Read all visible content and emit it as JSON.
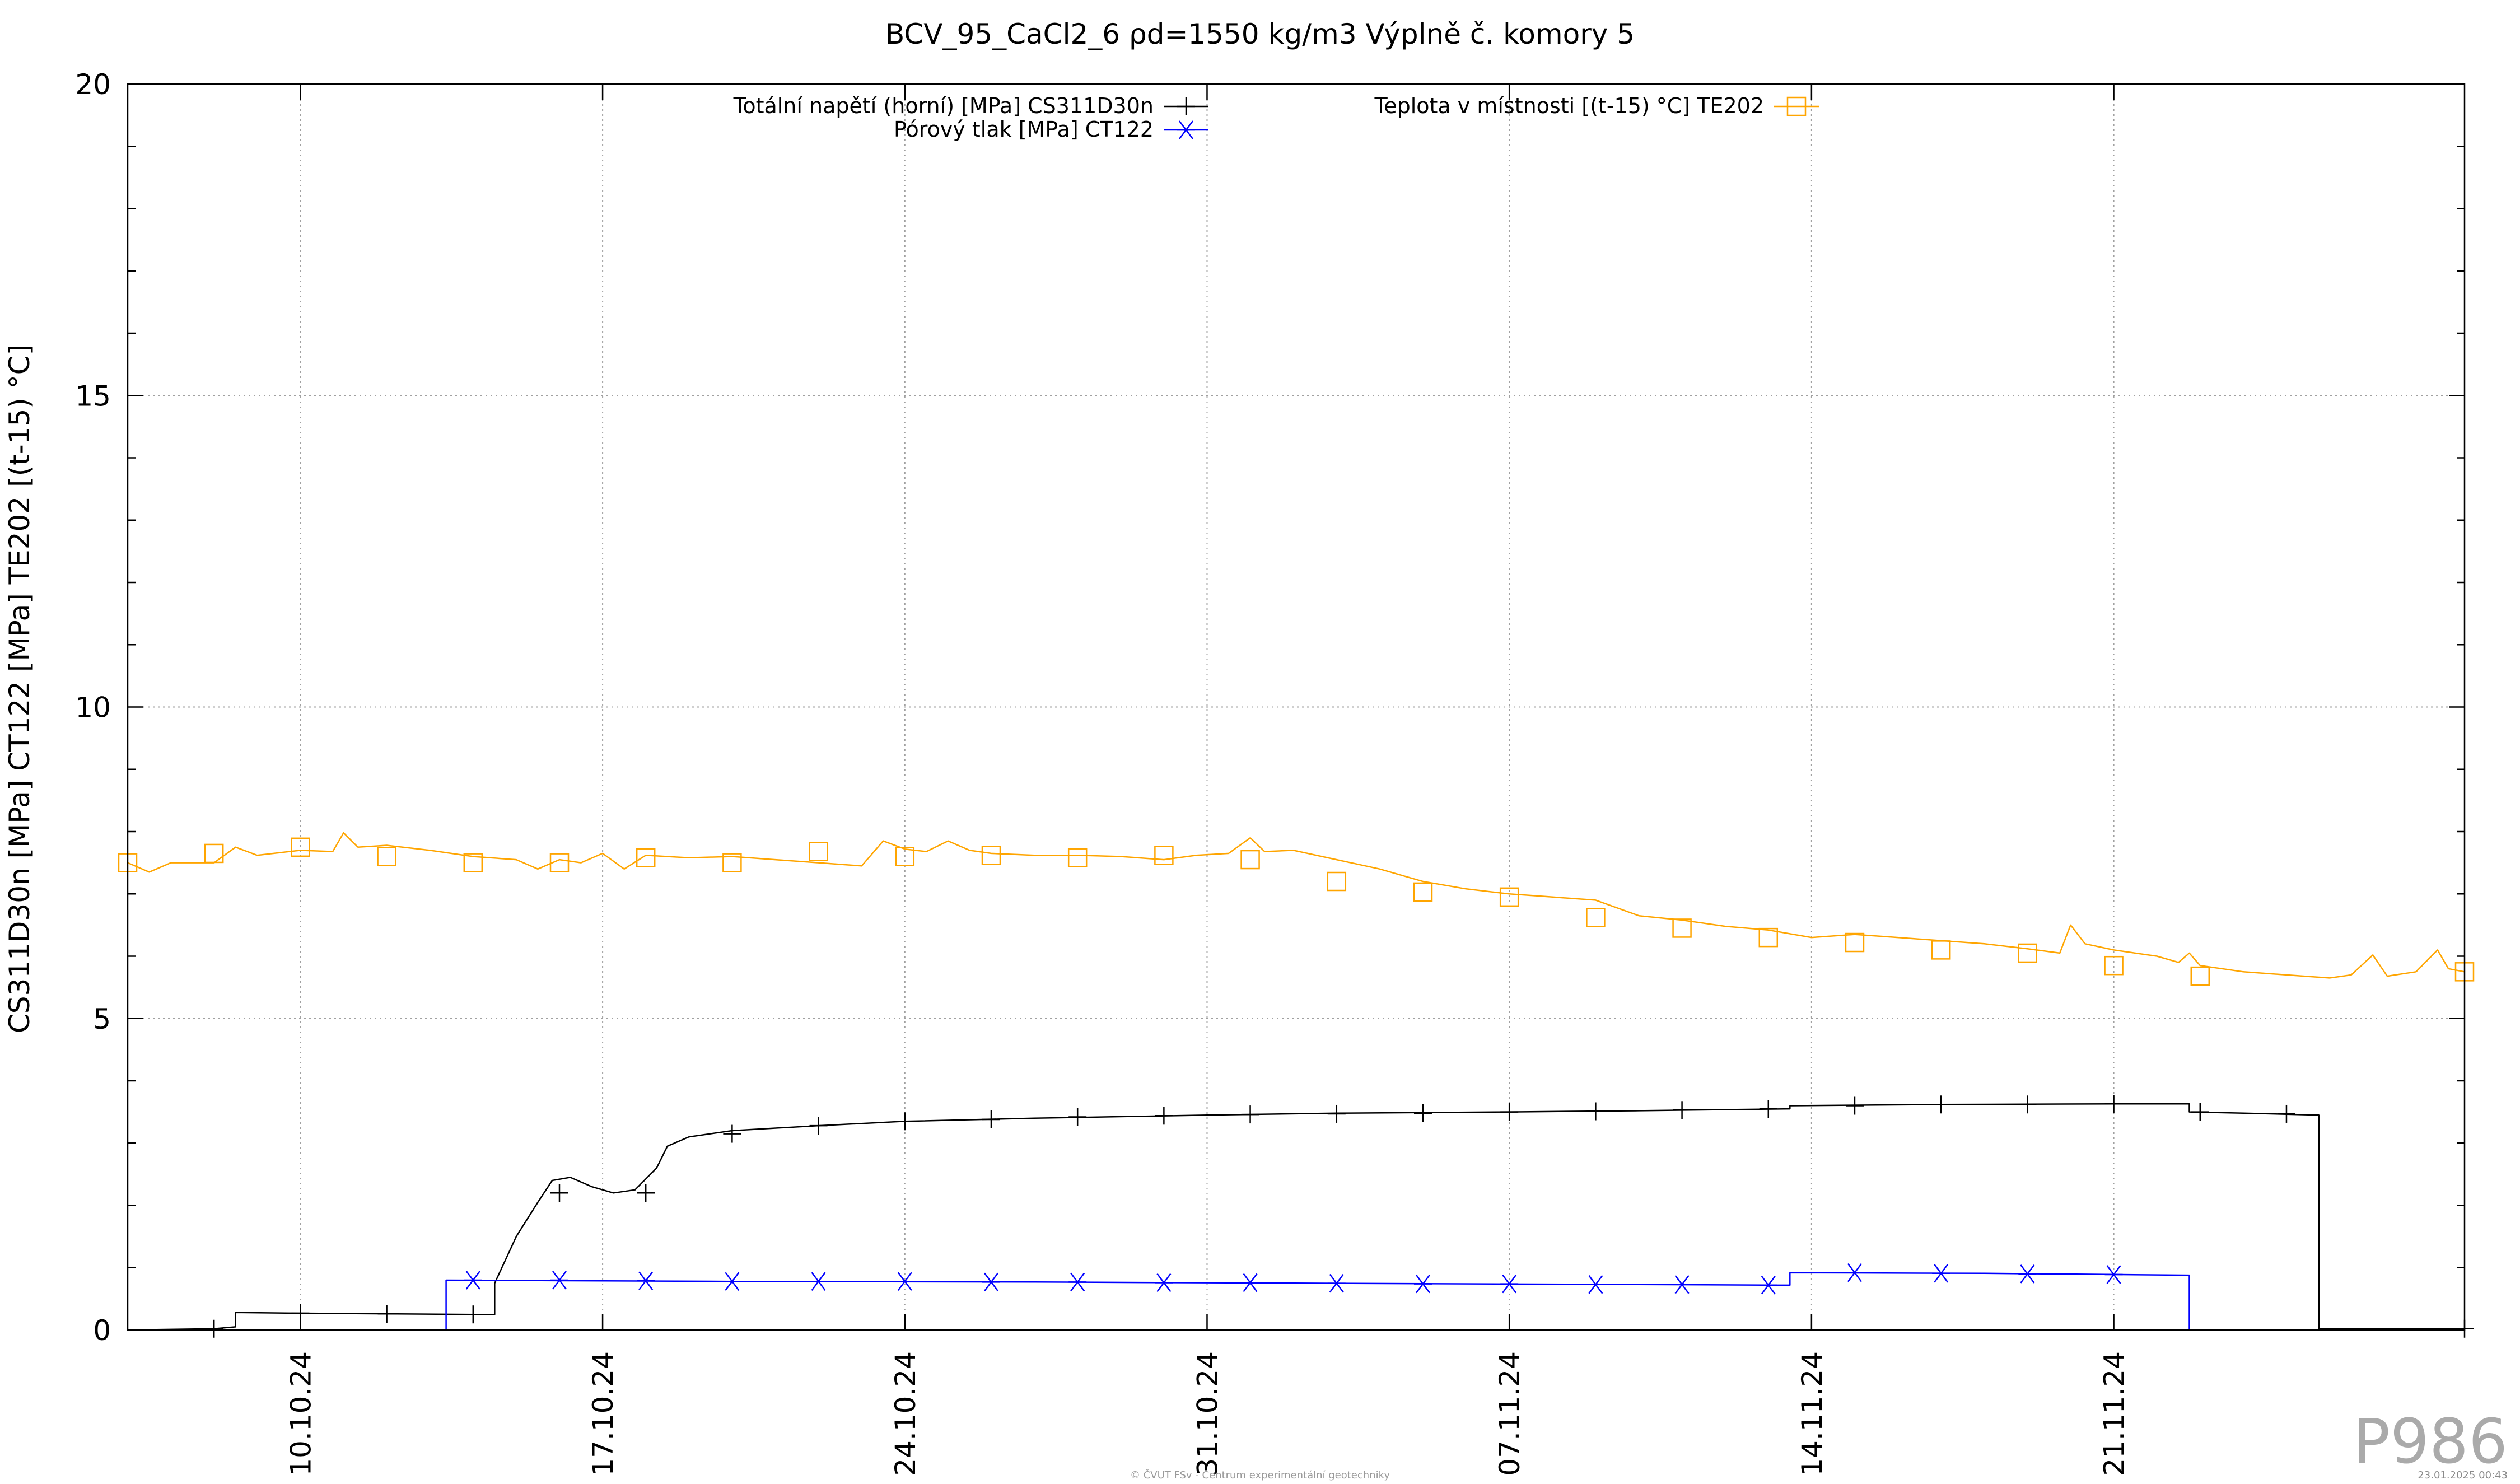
{
  "chart_data": {
    "type": "line",
    "title": "BCV_95_CaCl2_6 ρd=1550 kg/m3 Výplně č. komory 5",
    "ylabel": "CS311D30n [MPa] CT122 [MPa] TE202 [(t-15) °C]",
    "ylim": [
      0,
      20
    ],
    "yticks": [
      "0",
      "5",
      "10",
      "15",
      "20"
    ],
    "xlim": [
      "2024-10-06T00:00",
      "2024-11-29T03:00"
    ],
    "xticks": [
      {
        "label": "10.10.24",
        "date": "2024-10-10"
      },
      {
        "label": "17.10.24",
        "date": "2024-10-17"
      },
      {
        "label": "24.10.24",
        "date": "2024-10-24"
      },
      {
        "label": "31.10.24",
        "date": "2024-10-31"
      },
      {
        "label": "07.11.24",
        "date": "2024-11-07"
      },
      {
        "label": "14.11.24",
        "date": "2024-11-14"
      },
      {
        "label": "21.11.24",
        "date": "2024-11-21"
      }
    ],
    "grid": true,
    "legend": [
      {
        "name": "Totální napětí (horní) [MPa] CS311D30n",
        "color": "#000000",
        "marker": "plus"
      },
      {
        "name": "Pórový tlak [MPa] CT122",
        "color": "#0000ff",
        "marker": "asterisk"
      },
      {
        "name": "Teplota v místnosti [(t-15) °C] TE202",
        "color": "#ffa500",
        "marker": "square"
      }
    ],
    "series": [
      {
        "name": "Totální napětí (horní) [MPa] CS311D30n",
        "color": "#000000",
        "marker": "plus",
        "step": false,
        "points": [
          [
            "2024-10-06T00:00",
            0.0
          ],
          [
            "2024-10-08T00:00",
            0.02
          ],
          [
            "2024-10-08T12:00",
            0.05
          ],
          [
            "2024-10-08T12:00",
            0.28
          ],
          [
            "2024-10-10T00:00",
            0.27
          ],
          [
            "2024-10-12T00:00",
            0.26
          ],
          [
            "2024-10-14T00:00",
            0.25
          ],
          [
            "2024-10-14T12:00",
            0.25
          ],
          [
            "2024-10-14T12:00",
            0.75
          ],
          [
            "2024-10-15T00:00",
            1.5
          ],
          [
            "2024-10-15T12:00",
            2.05
          ],
          [
            "2024-10-15T20:00",
            2.4
          ],
          [
            "2024-10-16T06:00",
            2.45
          ],
          [
            "2024-10-16T18:00",
            2.3
          ],
          [
            "2024-10-17T06:00",
            2.2
          ],
          [
            "2024-10-17T18:00",
            2.25
          ],
          [
            "2024-10-18T06:00",
            2.6
          ],
          [
            "2024-10-18T12:00",
            2.95
          ],
          [
            "2024-10-19T00:00",
            3.1
          ],
          [
            "2024-10-20T00:00",
            3.2
          ],
          [
            "2024-10-22T00:00",
            3.28
          ],
          [
            "2024-10-24T00:00",
            3.35
          ],
          [
            "2024-10-27T00:00",
            3.4
          ],
          [
            "2024-10-31T00:00",
            3.45
          ],
          [
            "2024-11-03T00:00",
            3.48
          ],
          [
            "2024-11-07T00:00",
            3.5
          ],
          [
            "2024-11-10T00:00",
            3.52
          ],
          [
            "2024-11-13T12:00",
            3.55
          ],
          [
            "2024-11-13T12:00",
            3.6
          ],
          [
            "2024-11-17T00:00",
            3.62
          ],
          [
            "2024-11-21T00:00",
            3.63
          ],
          [
            "2024-11-22T18:00",
            3.63
          ],
          [
            "2024-11-22T18:00",
            3.5
          ],
          [
            "2024-11-24T00:00",
            3.48
          ],
          [
            "2024-11-25T18:00",
            3.45
          ],
          [
            "2024-11-25T18:00",
            0.02
          ],
          [
            "2024-11-29T03:00",
            0.02
          ]
        ],
        "markers": [
          [
            "2024-10-08T00:00",
            0.02
          ],
          [
            "2024-10-10T00:00",
            0.27
          ],
          [
            "2024-10-12T00:00",
            0.26
          ],
          [
            "2024-10-14T00:00",
            0.25
          ],
          [
            "2024-10-16T00:00",
            2.2
          ],
          [
            "2024-10-18T00:00",
            2.2
          ],
          [
            "2024-10-20T00:00",
            3.15
          ],
          [
            "2024-10-22T00:00",
            3.28
          ],
          [
            "2024-10-24T00:00",
            3.35
          ],
          [
            "2024-10-26T00:00",
            3.38
          ],
          [
            "2024-10-28T00:00",
            3.42
          ],
          [
            "2024-10-30T00:00",
            3.44
          ],
          [
            "2024-11-01T00:00",
            3.46
          ],
          [
            "2024-11-03T00:00",
            3.47
          ],
          [
            "2024-11-05T00:00",
            3.48
          ],
          [
            "2024-11-07T00:00",
            3.5
          ],
          [
            "2024-11-09T00:00",
            3.51
          ],
          [
            "2024-11-11T00:00",
            3.53
          ],
          [
            "2024-11-13T00:00",
            3.55
          ],
          [
            "2024-11-15T00:00",
            3.6
          ],
          [
            "2024-11-17T00:00",
            3.62
          ],
          [
            "2024-11-19T00:00",
            3.62
          ],
          [
            "2024-11-21T00:00",
            3.63
          ],
          [
            "2024-11-23T00:00",
            3.5
          ],
          [
            "2024-11-25T00:00",
            3.47
          ],
          [
            "2024-11-29T03:00",
            0.02
          ]
        ]
      },
      {
        "name": "Pórový tlak [MPa] CT122",
        "color": "#0000ff",
        "marker": "asterisk",
        "points": [
          [
            "2024-10-13T09:00",
            0.0
          ],
          [
            "2024-10-13T09:00",
            0.8
          ],
          [
            "2024-10-20T00:00",
            0.78
          ],
          [
            "2024-10-27T00:00",
            0.77
          ],
          [
            "2024-11-03T00:00",
            0.75
          ],
          [
            "2024-11-10T00:00",
            0.73
          ],
          [
            "2024-11-13T12:00",
            0.72
          ],
          [
            "2024-11-13T12:00",
            0.92
          ],
          [
            "2024-11-18T00:00",
            0.91
          ],
          [
            "2024-11-22T18:00",
            0.88
          ],
          [
            "2024-11-22T18:00",
            0.0
          ]
        ],
        "markers": [
          [
            "2024-10-14T00:00",
            0.8
          ],
          [
            "2024-10-16T00:00",
            0.8
          ],
          [
            "2024-10-18T00:00",
            0.79
          ],
          [
            "2024-10-20T00:00",
            0.78
          ],
          [
            "2024-10-22T00:00",
            0.78
          ],
          [
            "2024-10-24T00:00",
            0.78
          ],
          [
            "2024-10-26T00:00",
            0.77
          ],
          [
            "2024-10-28T00:00",
            0.77
          ],
          [
            "2024-10-30T00:00",
            0.76
          ],
          [
            "2024-11-01T00:00",
            0.76
          ],
          [
            "2024-11-03T00:00",
            0.75
          ],
          [
            "2024-11-05T00:00",
            0.74
          ],
          [
            "2024-11-07T00:00",
            0.74
          ],
          [
            "2024-11-09T00:00",
            0.73
          ],
          [
            "2024-11-11T00:00",
            0.73
          ],
          [
            "2024-11-13T00:00",
            0.72
          ],
          [
            "2024-11-15T00:00",
            0.92
          ],
          [
            "2024-11-17T00:00",
            0.91
          ],
          [
            "2024-11-19T00:00",
            0.9
          ],
          [
            "2024-11-21T00:00",
            0.89
          ]
        ]
      },
      {
        "name": "Teplota v místnosti [(t-15) °C] TE202",
        "color": "#ffa500",
        "marker": "square",
        "points": [
          [
            "2024-10-06T00:00",
            7.5
          ],
          [
            "2024-10-06T12:00",
            7.35
          ],
          [
            "2024-10-07T00:00",
            7.5
          ],
          [
            "2024-10-08T00:00",
            7.5
          ],
          [
            "2024-10-08T12:00",
            7.75
          ],
          [
            "2024-10-09T00:00",
            7.62
          ],
          [
            "2024-10-10T00:00",
            7.7
          ],
          [
            "2024-10-10T18:00",
            7.68
          ],
          [
            "2024-10-11T00:00",
            7.98
          ],
          [
            "2024-10-11T08:00",
            7.75
          ],
          [
            "2024-10-12T00:00",
            7.78
          ],
          [
            "2024-10-13T00:00",
            7.7
          ],
          [
            "2024-10-14T00:00",
            7.6
          ],
          [
            "2024-10-15T00:00",
            7.55
          ],
          [
            "2024-10-15T12:00",
            7.4
          ],
          [
            "2024-10-16T00:00",
            7.55
          ],
          [
            "2024-10-16T12:00",
            7.5
          ],
          [
            "2024-10-17T00:00",
            7.65
          ],
          [
            "2024-10-17T12:00",
            7.4
          ],
          [
            "2024-10-18T00:00",
            7.62
          ],
          [
            "2024-10-19T00:00",
            7.58
          ],
          [
            "2024-10-20T00:00",
            7.6
          ],
          [
            "2024-10-21T00:00",
            7.55
          ],
          [
            "2024-10-22T00:00",
            7.5
          ],
          [
            "2024-10-23T00:00",
            7.45
          ],
          [
            "2024-10-23T12:00",
            7.85
          ],
          [
            "2024-10-24T00:00",
            7.72
          ],
          [
            "2024-10-24T12:00",
            7.68
          ],
          [
            "2024-10-25T00:00",
            7.85
          ],
          [
            "2024-10-25T12:00",
            7.7
          ],
          [
            "2024-10-26T00:00",
            7.65
          ],
          [
            "2024-10-27T00:00",
            7.62
          ],
          [
            "2024-10-28T00:00",
            7.62
          ],
          [
            "2024-10-29T00:00",
            7.6
          ],
          [
            "2024-10-30T00:00",
            7.55
          ],
          [
            "2024-10-30T18:00",
            7.62
          ],
          [
            "2024-10-31T12:00",
            7.65
          ],
          [
            "2024-11-01T00:00",
            7.9
          ],
          [
            "2024-11-01T08:00",
            7.68
          ],
          [
            "2024-11-02T00:00",
            7.7
          ],
          [
            "2024-11-03T00:00",
            7.55
          ],
          [
            "2024-11-04T00:00",
            7.4
          ],
          [
            "2024-11-05T00:00",
            7.2
          ],
          [
            "2024-11-06T00:00",
            7.08
          ],
          [
            "2024-11-07T00:00",
            7.0
          ],
          [
            "2024-11-08T00:00",
            6.95
          ],
          [
            "2024-11-09T00:00",
            6.9
          ],
          [
            "2024-11-10T00:00",
            6.65
          ],
          [
            "2024-11-11T00:00",
            6.58
          ],
          [
            "2024-11-12T00:00",
            6.48
          ],
          [
            "2024-11-13T00:00",
            6.42
          ],
          [
            "2024-11-14T00:00",
            6.3
          ],
          [
            "2024-11-15T00:00",
            6.35
          ],
          [
            "2024-11-16T00:00",
            6.3
          ],
          [
            "2024-11-17T00:00",
            6.25
          ],
          [
            "2024-11-18T00:00",
            6.2
          ],
          [
            "2024-11-19T00:00",
            6.12
          ],
          [
            "2024-11-19T18:00",
            6.05
          ],
          [
            "2024-11-20T00:00",
            6.5
          ],
          [
            "2024-11-20T08:00",
            6.2
          ],
          [
            "2024-11-21T00:00",
            6.1
          ],
          [
            "2024-11-22T00:00",
            6.0
          ],
          [
            "2024-11-22T12:00",
            5.9
          ],
          [
            "2024-11-22T18:00",
            6.05
          ],
          [
            "2024-11-23T00:00",
            5.85
          ],
          [
            "2024-11-24T00:00",
            5.75
          ],
          [
            "2024-11-25T00:00",
            5.7
          ],
          [
            "2024-11-26T00:00",
            5.65
          ],
          [
            "2024-11-26T12:00",
            5.7
          ],
          [
            "2024-11-27T00:00",
            6.02
          ],
          [
            "2024-11-27T08:00",
            5.68
          ],
          [
            "2024-11-28T00:00",
            5.75
          ],
          [
            "2024-11-28T12:00",
            6.1
          ],
          [
            "2024-11-28T18:00",
            5.8
          ],
          [
            "2024-11-29T03:00",
            5.75
          ]
        ],
        "markers": [
          [
            "2024-10-06T00:00",
            7.5
          ],
          [
            "2024-10-08T00:00",
            7.65
          ],
          [
            "2024-10-10T00:00",
            7.75
          ],
          [
            "2024-10-12T00:00",
            7.6
          ],
          [
            "2024-10-14T00:00",
            7.5
          ],
          [
            "2024-10-16T00:00",
            7.5
          ],
          [
            "2024-10-18T00:00",
            7.58
          ],
          [
            "2024-10-20T00:00",
            7.5
          ],
          [
            "2024-10-22T00:00",
            7.68
          ],
          [
            "2024-10-24T00:00",
            7.6
          ],
          [
            "2024-10-26T00:00",
            7.62
          ],
          [
            "2024-10-28T00:00",
            7.58
          ],
          [
            "2024-10-30T00:00",
            7.62
          ],
          [
            "2024-11-01T00:00",
            7.55
          ],
          [
            "2024-11-03T00:00",
            7.2
          ],
          [
            "2024-11-05T00:00",
            7.03
          ],
          [
            "2024-11-07T00:00",
            6.95
          ],
          [
            "2024-11-09T00:00",
            6.62
          ],
          [
            "2024-11-11T00:00",
            6.45
          ],
          [
            "2024-11-13T00:00",
            6.3
          ],
          [
            "2024-11-15T00:00",
            6.22
          ],
          [
            "2024-11-17T00:00",
            6.1
          ],
          [
            "2024-11-19T00:00",
            6.05
          ],
          [
            "2024-11-21T00:00",
            5.85
          ],
          [
            "2024-11-23T00:00",
            5.68
          ],
          [
            "2024-11-29T03:00",
            5.75
          ]
        ]
      }
    ]
  },
  "watermark": "P986",
  "footer": "© ČVUT FSv - Centrum experimentální geotechniky",
  "footer_date": "23.01.2025 00:43"
}
